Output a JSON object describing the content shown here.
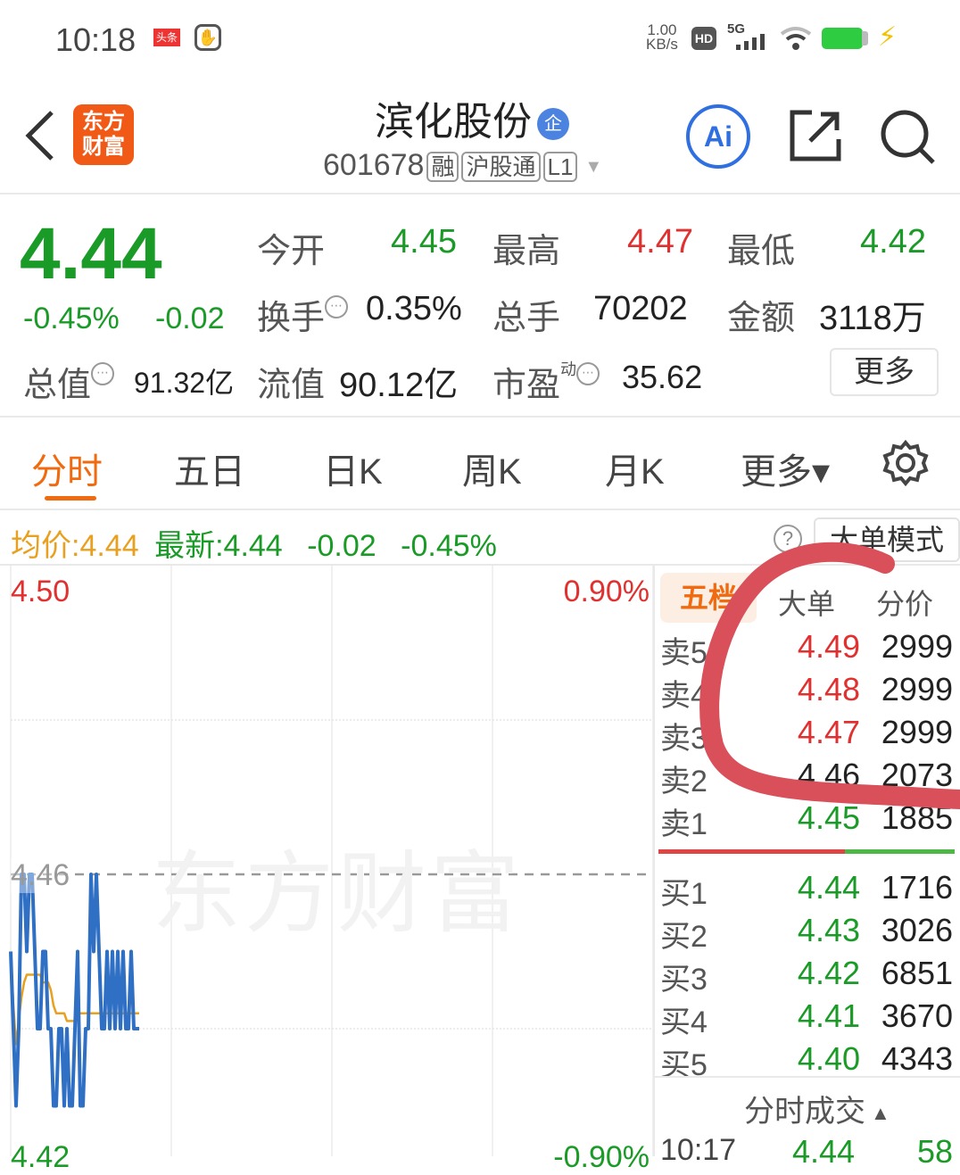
{
  "status_bar": {
    "time": "10:18",
    "app_badge": "头条",
    "net_speed_value": "1.00",
    "net_speed_unit": "KB/s",
    "hd": "HD",
    "network": "5G",
    "battery_color": "#2ecc40"
  },
  "header": {
    "logo_line1": "东方",
    "logo_line2": "财富",
    "title": "滨化股份",
    "title_badge": "企",
    "code": "601678",
    "tags": [
      "融",
      "沪股通",
      "L1"
    ],
    "ai_label": "Ai"
  },
  "quote": {
    "price": "4.44",
    "change_pct": "-0.45%",
    "change": "-0.02",
    "fields": [
      {
        "label": "今开",
        "value": "4.45",
        "color": "green"
      },
      {
        "label": "最高",
        "value": "4.47",
        "color": "red"
      },
      {
        "label": "最低",
        "value": "4.42",
        "color": "green"
      },
      {
        "label": "换手",
        "value": "0.35%"
      },
      {
        "label": "总手",
        "value": "70202"
      },
      {
        "label": "金额",
        "value": "3118万"
      },
      {
        "label": "总值",
        "value": "91.32亿"
      },
      {
        "label": "流值",
        "value": "90.12亿"
      },
      {
        "label": "市盈",
        "superscript": "动",
        "value": "35.62"
      }
    ],
    "more_button": "更多"
  },
  "tabs": [
    {
      "label": "分时",
      "active": true
    },
    {
      "label": "五日"
    },
    {
      "label": "日K"
    },
    {
      "label": "周K"
    },
    {
      "label": "月K"
    },
    {
      "label": "更多▾"
    }
  ],
  "info_bar": {
    "avg_label": "均价:",
    "avg_value": "4.44",
    "latest_label": "最新:",
    "latest_value": "4.44",
    "change": "-0.02",
    "change_pct": "-0.45%",
    "help": "?",
    "mode_button": "大单模式"
  },
  "chart_data": {
    "type": "line",
    "watermark": "东方财富",
    "y_left_ticks": [
      "4.50",
      "4.46",
      "4.42"
    ],
    "y_right_ticks": [
      "0.90%",
      "-0.90%"
    ],
    "ylim": [
      4.42,
      4.5
    ],
    "prev_close": 4.46,
    "x_minutes_total": 240,
    "series": [
      {
        "key": "price",
        "color": "#2f6fc4",
        "values": [
          4.45,
          4.44,
          4.43,
          4.44,
          4.46,
          4.46,
          4.45,
          4.46,
          4.46,
          4.45,
          4.44,
          4.44,
          4.45,
          4.45,
          4.44,
          4.44,
          4.43,
          4.43,
          4.44,
          4.44,
          4.43,
          4.44,
          4.43,
          4.43,
          4.44,
          4.45,
          4.43,
          4.43,
          4.44,
          4.44,
          4.46,
          4.45,
          4.46,
          4.45,
          4.44,
          4.44,
          4.45,
          4.44,
          4.45,
          4.44,
          4.45,
          4.44,
          4.45,
          4.44,
          4.44,
          4.45,
          4.44,
          4.44,
          4.44
        ]
      },
      {
        "key": "average",
        "color": "#e8a020",
        "values": [
          4.45,
          4.443,
          4.438,
          4.441,
          4.444,
          4.446,
          4.447,
          4.447,
          4.447,
          4.447,
          4.447,
          4.447,
          4.446,
          4.446,
          4.446,
          4.445,
          4.443,
          4.442,
          4.442,
          4.442,
          4.442,
          4.441,
          4.441,
          4.441,
          4.441,
          4.442,
          4.442,
          4.442,
          4.442,
          4.442,
          4.442,
          4.442,
          4.442,
          4.442,
          4.442,
          4.442,
          4.442,
          4.442,
          4.442,
          4.442,
          4.442,
          4.442,
          4.442,
          4.442,
          4.442,
          4.442,
          4.442,
          4.442,
          4.442
        ]
      }
    ]
  },
  "order_book": {
    "tabs": [
      "五档",
      "大单",
      "分价"
    ],
    "asks": [
      {
        "label": "卖5",
        "price": "4.49",
        "vol": "2999",
        "color": "red"
      },
      {
        "label": "卖4",
        "price": "4.48",
        "vol": "2999",
        "color": "red"
      },
      {
        "label": "卖3",
        "price": "4.47",
        "vol": "2999",
        "color": "red"
      },
      {
        "label": "卖2",
        "price": "4.46",
        "vol": "2073",
        "color": "dark"
      },
      {
        "label": "卖1",
        "price": "4.45",
        "vol": "1885",
        "color": "green"
      }
    ],
    "bids": [
      {
        "label": "买1",
        "price": "4.44",
        "vol": "1716"
      },
      {
        "label": "买2",
        "price": "4.43",
        "vol": "3026"
      },
      {
        "label": "买3",
        "price": "4.42",
        "vol": "6851"
      },
      {
        "label": "买4",
        "price": "4.41",
        "vol": "3670"
      },
      {
        "label": "买5",
        "price": "4.40",
        "vol": "4343"
      }
    ],
    "ratio_bar_red_fraction": 0.63,
    "ticks_header": "分时成交",
    "ticks": [
      {
        "time": "10:17",
        "price": "4.44",
        "vol": "58"
      }
    ]
  },
  "annotation_color": "#d9505a"
}
